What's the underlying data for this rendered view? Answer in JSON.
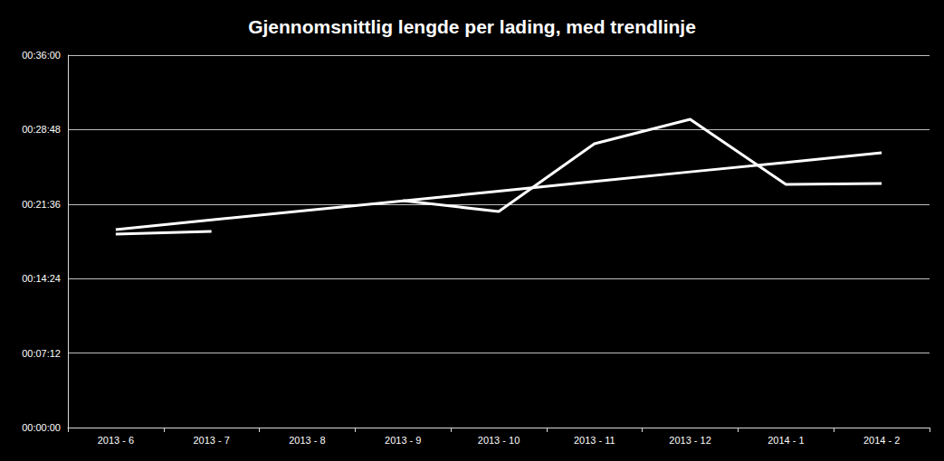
{
  "chart_data": {
    "type": "line",
    "title": "Gjennomsnittlig lengde per lading, med trendlinje",
    "categories": [
      "2013 - 6",
      "2013 - 7",
      "2013 - 8",
      "2013 - 9",
      "2013 - 10",
      "2013 - 11",
      "2013 - 12",
      "2014 - 1",
      "2014 - 2"
    ],
    "series": [
      {
        "color": "#ffffff",
        "values": [
          1122,
          1138,
          null,
          1316,
          1253,
          1646,
          1788,
          1410,
          1416
        ]
      },
      {
        "color": "#ffffff",
        "values": [
          1148,
          1204,
          1260,
          1315,
          1371,
          1427,
          1483,
          1538,
          1594
        ]
      }
    ],
    "ylim": [
      0,
      2160
    ],
    "yticks": [
      {
        "value": 0,
        "label": "00:00:00"
      },
      {
        "value": 432,
        "label": "00:07:12"
      },
      {
        "value": 864,
        "label": "00:14:24"
      },
      {
        "value": 1296,
        "label": "00:21:36"
      },
      {
        "value": 1728,
        "label": "00:28:48"
      },
      {
        "value": 2160,
        "label": "00:36:00"
      }
    ],
    "grid": true
  }
}
